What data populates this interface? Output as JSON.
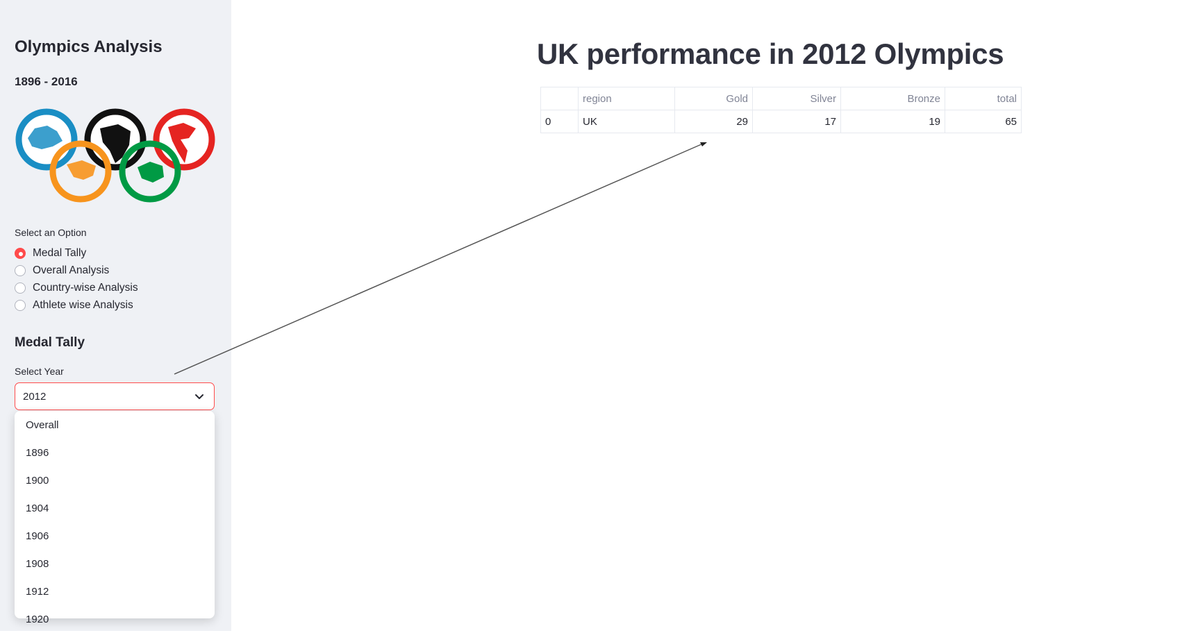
{
  "sidebar": {
    "title": "Olympics Analysis",
    "subtitle": "1896 - 2016",
    "logo_icon": "olympic-rings-world-map-logo",
    "radio_label": "Select an Option",
    "options": [
      {
        "label": "Medal Tally",
        "selected": true
      },
      {
        "label": "Overall Analysis",
        "selected": false
      },
      {
        "label": "Country-wise Analysis",
        "selected": false
      },
      {
        "label": "Athlete wise Analysis",
        "selected": false
      }
    ],
    "section_title": "Medal Tally",
    "select_label": "Select Year",
    "select_value": "2012",
    "dropdown_options": [
      "Overall",
      "1896",
      "1900",
      "1904",
      "1906",
      "1908",
      "1912",
      "1920"
    ]
  },
  "main": {
    "title": "UK performance in 2012 Olympics",
    "table": {
      "headers": [
        "",
        "region",
        "Gold",
        "Silver",
        "Bronze",
        "total"
      ],
      "rows": [
        [
          "0",
          "UK",
          "29",
          "17",
          "19",
          "65"
        ]
      ]
    }
  },
  "colors": {
    "accent": "#ff4b4b",
    "sidebar_bg": "#eff1f5",
    "text": "#262730"
  }
}
